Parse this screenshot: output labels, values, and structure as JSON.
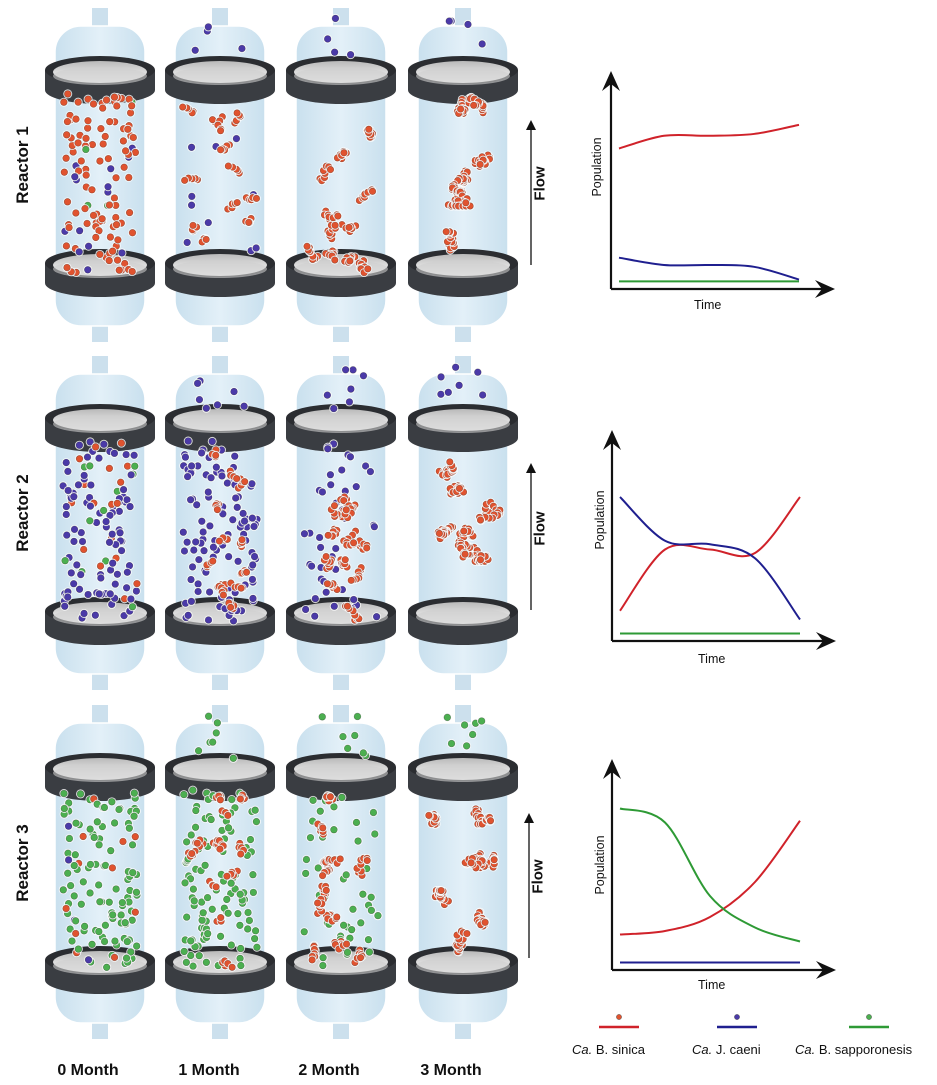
{
  "figure": {
    "rows": [
      {
        "label": "Reactor 1",
        "flow_label": "Flow"
      },
      {
        "label": "Reactor 2",
        "flow_label": "Flow"
      },
      {
        "label": "Reactor 3",
        "flow_label": "Flow"
      }
    ],
    "columns": [
      {
        "label": "0 Month"
      },
      {
        "label": "1 Month"
      },
      {
        "label": "2 Month"
      },
      {
        "label": "3 Month"
      }
    ],
    "colors": {
      "sinica": "#e0532f",
      "caeni": "#4b3aa8",
      "sapporonesis": "#4caf50",
      "reactor_fill": "#d3e7f3",
      "ring_dark": "#3a3d42",
      "disc_light": "#d6d6d6"
    },
    "legend": [
      {
        "prefix": "Ca.",
        "name": "B. sinica",
        "color": "#d0222a"
      },
      {
        "prefix": "Ca.",
        "name": "J. caeni",
        "color": "#1f1f8f"
      },
      {
        "prefix": "Ca.",
        "name": "B. sapporonesis",
        "color": "#2e9a35"
      }
    ]
  },
  "chart_data": [
    {
      "type": "line",
      "title": "Reactor 1",
      "xlabel": "Time",
      "ylabel": "Population",
      "grid": false,
      "x": [
        0,
        0.25,
        0.5,
        0.75,
        1.0
      ],
      "ylim": [
        0,
        1
      ],
      "series": [
        {
          "name": "Ca. B. sinica",
          "color": "#d0222a",
          "values": [
            0.75,
            0.82,
            0.82,
            0.83,
            0.88
          ]
        },
        {
          "name": "Ca. J. caeni",
          "color": "#1f1f8f",
          "values": [
            0.15,
            0.11,
            0.11,
            0.1,
            0.03
          ]
        },
        {
          "name": "Ca. B. sapporonesis",
          "color": "#2e9a35",
          "values": [
            0.02,
            0.02,
            0.02,
            0.02,
            0.02
          ]
        }
      ]
    },
    {
      "type": "line",
      "title": "Reactor 2",
      "xlabel": "Time",
      "ylabel": "Population",
      "grid": false,
      "x": [
        0,
        0.25,
        0.5,
        0.75,
        1.0
      ],
      "ylim": [
        0,
        1
      ],
      "series": [
        {
          "name": "Ca. B. sinica",
          "color": "#d0222a",
          "values": [
            0.15,
            0.5,
            0.5,
            0.48,
            0.8
          ]
        },
        {
          "name": "Ca. J. caeni",
          "color": "#1f1f8f",
          "values": [
            0.8,
            0.55,
            0.53,
            0.45,
            0.1
          ]
        },
        {
          "name": "Ca. B. sapporonesis",
          "color": "#2e9a35",
          "values": [
            0.02,
            0.02,
            0.02,
            0.02,
            0.02
          ]
        }
      ]
    },
    {
      "type": "line",
      "title": "Reactor 3",
      "xlabel": "Time",
      "ylabel": "Population",
      "grid": false,
      "x": [
        0,
        0.25,
        0.5,
        0.75,
        1.0
      ],
      "ylim": [
        0,
        1
      ],
      "series": [
        {
          "name": "Ca. B. sinica",
          "color": "#d0222a",
          "values": [
            0.18,
            0.2,
            0.28,
            0.48,
            0.83
          ]
        },
        {
          "name": "Ca. J. caeni",
          "color": "#1f1f8f",
          "values": [
            0.02,
            0.02,
            0.02,
            0.02,
            0.02
          ]
        },
        {
          "name": "Ca. B. sapporonesis",
          "color": "#2e9a35",
          "values": [
            0.9,
            0.82,
            0.4,
            0.22,
            0.14
          ]
        }
      ]
    }
  ]
}
